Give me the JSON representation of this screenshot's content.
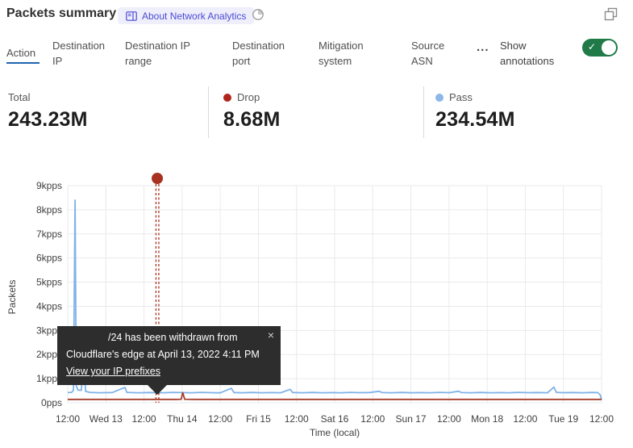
{
  "colors": {
    "accent_blue": "#2063b0",
    "toggle_green": "#1f7a48",
    "drop_red": "#b0261c",
    "pass_blue": "#8db7e8",
    "annotation_red": "#a8311f",
    "badge_purple": "#4a4ad4",
    "badge_bg": "#efeefb",
    "grid": "#e9eaec",
    "axis_text": "#3f3f3f"
  },
  "header": {
    "title": "Packets summary",
    "about_badge_label": "About Network Analytics"
  },
  "tabs": {
    "items": [
      {
        "label": "Action",
        "active": true
      },
      {
        "label": "Destination IP",
        "active": false
      },
      {
        "label": "Destination IP range",
        "active": false
      },
      {
        "label": "Destination port",
        "active": false
      },
      {
        "label": "Mitigation system",
        "active": false
      },
      {
        "label": "Source ASN",
        "active": false
      }
    ],
    "more_label": "...",
    "annotations_label": "Show annotations",
    "toggle_state": "on"
  },
  "stats": {
    "total": {
      "label": "Total",
      "value": "243.23M"
    },
    "drop": {
      "label": "Drop",
      "value": "8.68M"
    },
    "pass": {
      "label": "Pass",
      "value": "234.54M"
    }
  },
  "tooltip": {
    "line1": "/24 has been withdrawn from",
    "line2": "Cloudflare's edge at April 13, 2022 4:11 PM",
    "link_label": "View your IP prefixes",
    "close_label": "×"
  },
  "chart_data": {
    "type": "line",
    "title": "Packets summary",
    "xlabel": "Time (local)",
    "ylabel": "Packets",
    "grid": true,
    "ylim": [
      0,
      9000
    ],
    "x_hours_range": [
      0,
      168
    ],
    "y_ticks": [
      "0pps",
      "1kpps",
      "2kpps",
      "3kpps",
      "4kpps",
      "5kpps",
      "6kpps",
      "7kpps",
      "8kpps",
      "9kpps"
    ],
    "y_tick_values": [
      0,
      1000,
      2000,
      3000,
      4000,
      5000,
      6000,
      7000,
      8000,
      9000
    ],
    "x_ticks": [
      "12:00",
      "Wed 13",
      "12:00",
      "Thu 14",
      "12:00",
      "Fri 15",
      "12:00",
      "Sat 16",
      "12:00",
      "Sun 17",
      "12:00",
      "Mon 18",
      "12:00",
      "Tue 19",
      "12:00"
    ],
    "x_tick_hours": [
      0,
      12,
      24,
      36,
      48,
      60,
      72,
      84,
      96,
      108,
      120,
      132,
      144,
      156,
      168
    ],
    "series": [
      {
        "name": "Pass",
        "color": "#7fb2e8",
        "points": [
          [
            0,
            420
          ],
          [
            1.2,
            430
          ],
          [
            1.8,
            520
          ],
          [
            2.3,
            8400
          ],
          [
            2.7,
            700
          ],
          [
            3.2,
            530
          ],
          [
            4.3,
            520
          ],
          [
            4.7,
            1300
          ],
          [
            5.2,
            1280
          ],
          [
            5.6,
            480
          ],
          [
            7,
            430
          ],
          [
            10,
            415
          ],
          [
            14,
            425
          ],
          [
            18,
            640
          ],
          [
            18.6,
            430
          ],
          [
            22,
            415
          ],
          [
            26,
            425
          ],
          [
            30,
            415
          ],
          [
            33,
            430
          ],
          [
            36,
            420
          ],
          [
            39,
            415
          ],
          [
            42,
            430
          ],
          [
            45,
            418
          ],
          [
            48,
            412
          ],
          [
            51.5,
            600
          ],
          [
            52.3,
            425
          ],
          [
            55,
            415
          ],
          [
            58,
            428
          ],
          [
            61,
            415
          ],
          [
            64,
            422
          ],
          [
            67,
            415
          ],
          [
            70,
            560
          ],
          [
            70.8,
            425
          ],
          [
            74,
            415
          ],
          [
            77,
            428
          ],
          [
            80,
            415
          ],
          [
            83,
            422
          ],
          [
            86,
            415
          ],
          [
            89,
            430
          ],
          [
            92,
            418
          ],
          [
            95,
            425
          ],
          [
            98,
            478
          ],
          [
            99,
            420
          ],
          [
            102,
            415
          ],
          [
            105,
            428
          ],
          [
            108,
            415
          ],
          [
            111,
            422
          ],
          [
            114,
            415
          ],
          [
            117,
            430
          ],
          [
            120,
            418
          ],
          [
            123,
            480
          ],
          [
            124,
            420
          ],
          [
            127,
            415
          ],
          [
            130,
            428
          ],
          [
            133,
            415
          ],
          [
            136,
            422
          ],
          [
            139,
            415
          ],
          [
            142,
            430
          ],
          [
            145,
            418
          ],
          [
            148,
            425
          ],
          [
            151,
            415
          ],
          [
            153,
            650
          ],
          [
            153.8,
            430
          ],
          [
            156,
            418
          ],
          [
            159,
            425
          ],
          [
            162,
            415
          ],
          [
            165,
            428
          ],
          [
            166.8,
            420
          ],
          [
            167.6,
            320
          ],
          [
            168,
            120
          ]
        ]
      },
      {
        "name": "Drop",
        "color": "#a63d2a",
        "points": [
          [
            0,
            140
          ],
          [
            30,
            140
          ],
          [
            34,
            140
          ],
          [
            35.7,
            148
          ],
          [
            36.2,
            420
          ],
          [
            36.8,
            148
          ],
          [
            40,
            140
          ],
          [
            80,
            140
          ],
          [
            120,
            140
          ],
          [
            168,
            140
          ]
        ]
      }
    ],
    "annotation": {
      "x_hours": 28.18,
      "time_label": "April 13, 2022 4:11 PM",
      "marker_color": "#a8311f"
    }
  }
}
